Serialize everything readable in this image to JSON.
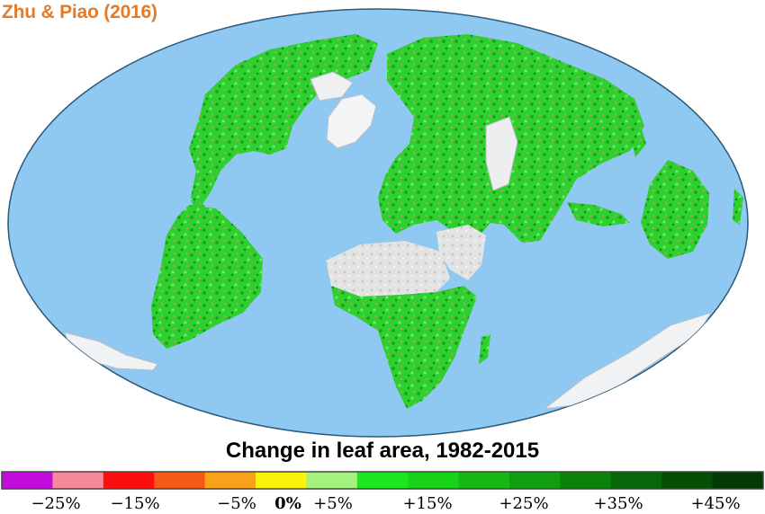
{
  "credit": "Zhu & Piao (2016)",
  "caption": "Change in leaf area, 1982-2015",
  "colors": {
    "ocean": "#8fc8f0",
    "ocean_edge": "#2b5a7a",
    "vegetation": "#2ccb2c",
    "desert": "#e4e4e4",
    "ice": "#f2f4f6",
    "accent_text": "#e37b29"
  },
  "legend": {
    "bins": [
      {
        "color": "#c40ddc"
      },
      {
        "color": "#f5889a"
      },
      {
        "color": "#fa0e0e"
      },
      {
        "color": "#f55a18"
      },
      {
        "color": "#f7a21a"
      },
      {
        "color": "#fbf30a"
      },
      {
        "color": "#a6f27f"
      },
      {
        "color": "#1ee61e"
      },
      {
        "color": "#18d218"
      },
      {
        "color": "#16b816"
      },
      {
        "color": "#109e10"
      },
      {
        "color": "#0b800b"
      },
      {
        "color": "#086608"
      },
      {
        "color": "#064d06"
      },
      {
        "color": "#033a03"
      }
    ],
    "tick_labels": [
      {
        "text": "−25%",
        "bold": false
      },
      {
        "text": "−15%",
        "bold": false
      },
      {
        "text": "−5%",
        "bold": false
      },
      {
        "text": "0%",
        "bold": true
      },
      {
        "text": "+5%",
        "bold": false
      },
      {
        "text": "+15%",
        "bold": false
      },
      {
        "text": "+25%",
        "bold": false
      },
      {
        "text": "+35%",
        "bold": false
      },
      {
        "text": "+45%",
        "bold": false
      }
    ]
  }
}
